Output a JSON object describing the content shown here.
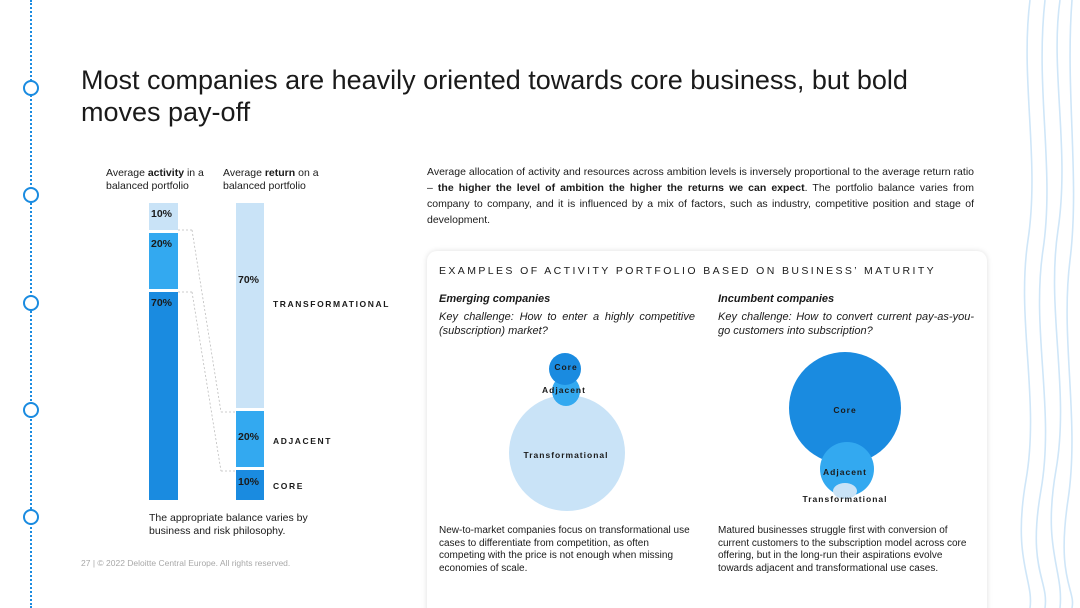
{
  "title": "Most companies are heavily oriented towards core business, but bold moves pay-off",
  "chart": {
    "activity_header_pre": "Average ",
    "activity_header_bold": "activity",
    "activity_header_post": " in a balanced portfolio",
    "return_header_pre": "Average ",
    "return_header_bold": "return",
    "return_header_post": " on a balanced portfolio",
    "note": "The appropriate balance varies by business and risk philosophy."
  },
  "chart_data": {
    "type": "bar",
    "categories": [
      "Average activity in a balanced portfolio",
      "Average return on a balanced portfolio"
    ],
    "series": [
      {
        "name": "TRANSFORMATIONAL",
        "values": [
          10,
          70
        ],
        "labels": [
          "10%",
          "70%"
        ],
        "color_activity": "#c9e3f7",
        "color_return": "#c9e3f7"
      },
      {
        "name": "ADJACENT",
        "values": [
          20,
          20
        ],
        "labels": [
          "20%",
          "20%"
        ],
        "color_activity": "#33a9f0",
        "color_return": "#33a9f0"
      },
      {
        "name": "CORE",
        "values": [
          70,
          10
        ],
        "labels": [
          "70%",
          "10%"
        ],
        "color_activity": "#1a8be0",
        "color_return": "#1a8be0"
      }
    ],
    "ylim": [
      0,
      100
    ]
  },
  "intro": {
    "part1": "Average allocation of activity and resources across ambition levels is inversely proportional to the average return ratio – ",
    "bold": "the higher the level of ambition the higher the returns we can expect",
    "part2": ". The portfolio balance varies from company to company, and it is influenced by a mix of factors, such as industry, competitive position and stage of development."
  },
  "card": {
    "title": "EXAMPLES OF ACTIVITY PORTFOLIO BASED ON BUSINESS’ MATURITY",
    "emerging": {
      "heading": "Emerging companies",
      "challenge": "Key challenge: How to enter a highly competitive (subscription) market?",
      "description": "New-to-market companies focus on transformational use cases to differentiate from competition, as often competing with the price is not enough when missing economies of scale.",
      "bubbles": {
        "core": "Core",
        "adjacent": "Adjacent",
        "transformational": "Transformational"
      }
    },
    "incumbent": {
      "heading": "Incumbent companies",
      "challenge": "Key challenge: How to convert current pay-as-you-go customers into subscription?",
      "description": "Matured businesses struggle first with conversion of current customers to the subscription model across core offering, but in the long-run their aspirations evolve towards adjacent and transformational use cases.",
      "bubbles": {
        "core": "Core",
        "adjacent": "Adjacent",
        "transformational": "Transformational"
      }
    }
  },
  "footer": "27  |  © 2022 Deloitte Central Europe. All rights reserved.",
  "colors": {
    "accent": "#1a8be0",
    "mid": "#33a9f0",
    "light": "#c9e3f7"
  }
}
